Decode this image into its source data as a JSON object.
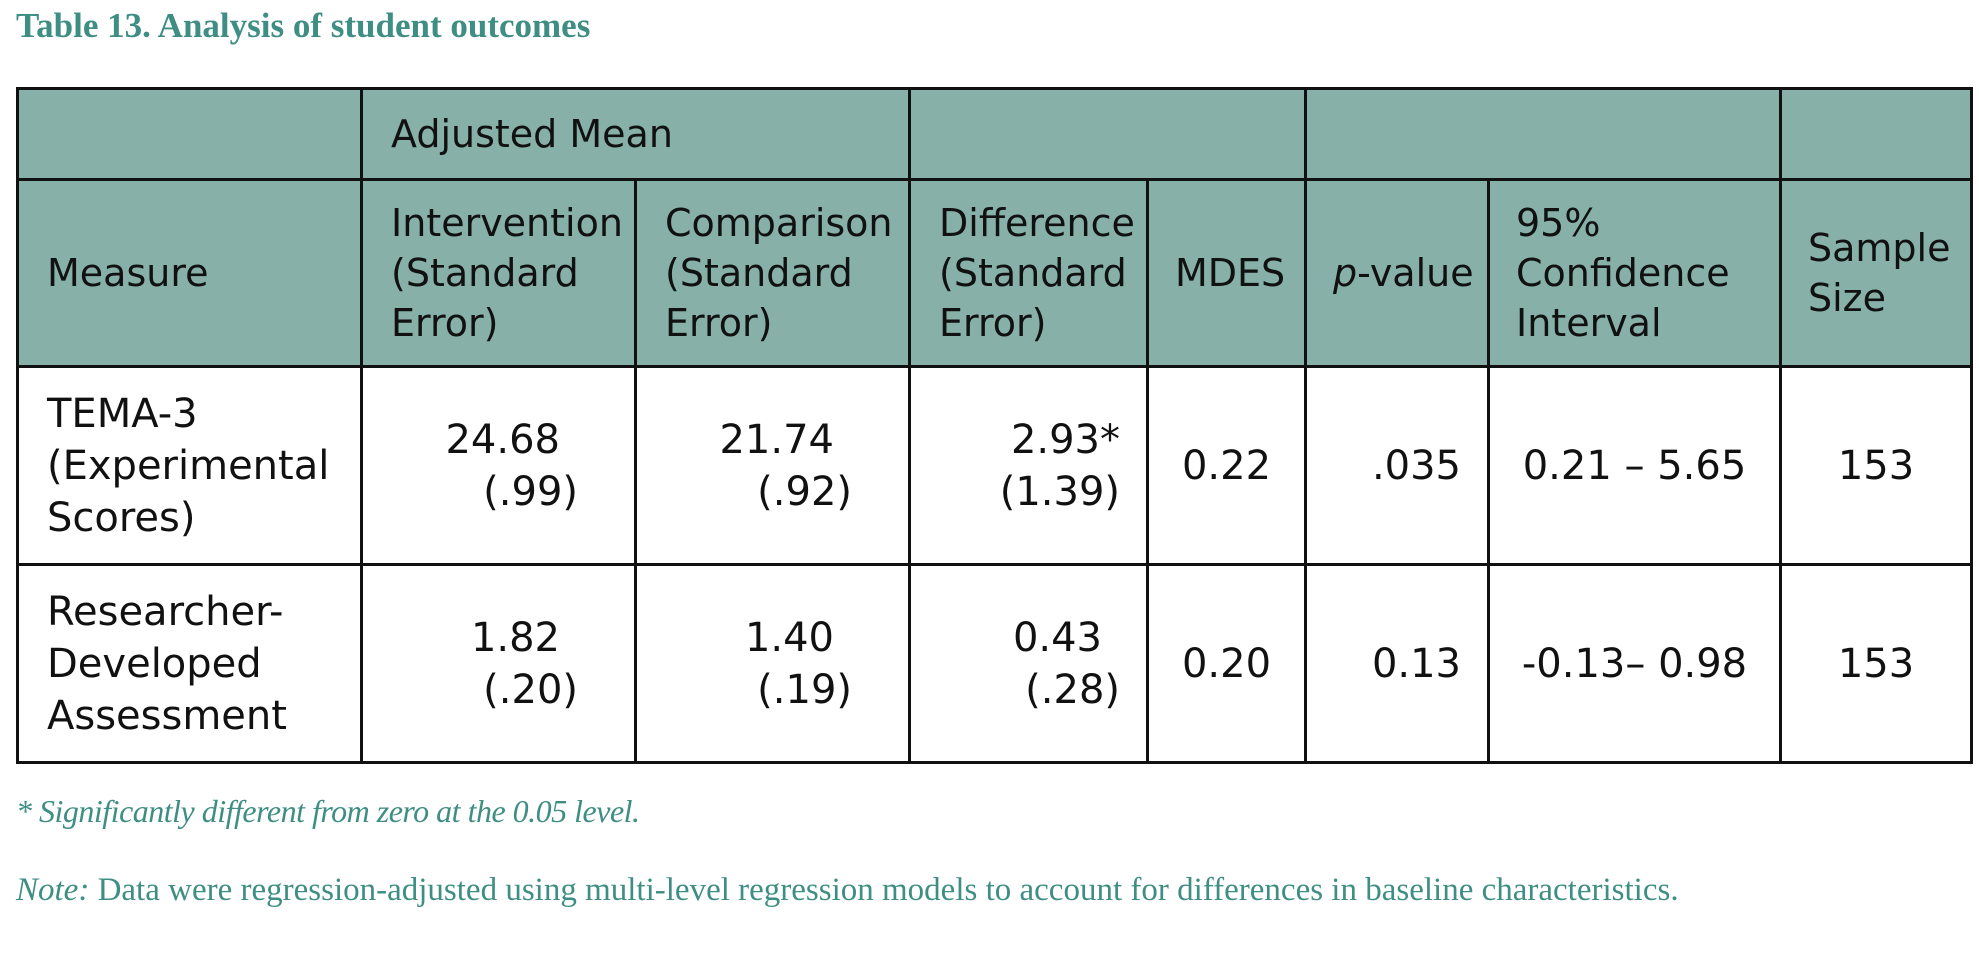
{
  "title": "Table 13. Analysis of student outcomes",
  "table": {
    "group_header": "Adjusted Mean",
    "columns": {
      "measure": "Measure",
      "intervention": [
        "Intervention",
        "(Standard",
        "Error)"
      ],
      "comparison": [
        "Comparison",
        "(Standard",
        "Error)"
      ],
      "difference": [
        "Difference",
        "(Standard",
        "Error)"
      ],
      "mdes": "MDES",
      "pvalue_italic": "p",
      "pvalue_rest": "-value",
      "ci": [
        "95%",
        "Confidence",
        "Interval"
      ],
      "sample": [
        "Sample",
        "Size"
      ]
    },
    "rows": [
      {
        "measure": [
          "TEMA-3",
          "(Experimental",
          "Scores)"
        ],
        "intervention": "24.68",
        "intervention_se": "(.99)",
        "comparison": "21.74",
        "comparison_se": "(.92)",
        "difference": "2.93*",
        "difference_se": "(1.39)",
        "mdes": "0.22",
        "pvalue": ".035",
        "ci": "0.21 – 5.65",
        "sample": "153"
      },
      {
        "measure": [
          "Researcher-",
          "Developed",
          "Assessment"
        ],
        "intervention": "1.82",
        "intervention_se": "(.20)",
        "comparison": "1.40",
        "comparison_se": "(.19)",
        "difference": "0.43",
        "difference_se": "(.28)",
        "mdes": "0.20",
        "pvalue": "0.13",
        "ci": "-0.13– 0.98",
        "sample": "153"
      }
    ]
  },
  "footnote": "* Significantly different from zero at the 0.05 level.",
  "note": {
    "label": "Note:",
    "text": " Data were regression-adjusted using multi-level regression models to account for differences in baseline characteristics."
  }
}
